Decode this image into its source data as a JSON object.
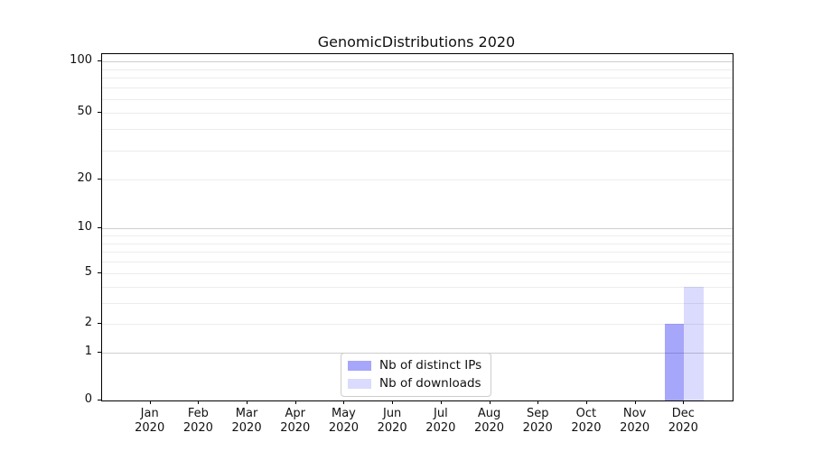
{
  "chart_data": {
    "type": "bar",
    "title": "GenomicDistributions 2020",
    "categories": [
      "Jan",
      "Feb",
      "Mar",
      "Apr",
      "May",
      "Jun",
      "Jul",
      "Aug",
      "Sep",
      "Oct",
      "Nov",
      "Dec"
    ],
    "category_year": "2020",
    "series": [
      {
        "name": "Nb of distinct IPs",
        "color": "rgba(0,0,240,0.35)",
        "values": [
          0,
          0,
          0,
          0,
          0,
          0,
          0,
          0,
          0,
          0,
          0,
          2
        ]
      },
      {
        "name": "Nb of downloads",
        "color": "rgba(0,0,240,0.14)",
        "values": [
          0,
          0,
          0,
          0,
          0,
          0,
          0,
          0,
          0,
          0,
          0,
          4
        ]
      }
    ],
    "yticks": [
      0,
      1,
      2,
      5,
      10,
      20,
      50,
      100
    ],
    "major_gridlines": [
      1,
      10,
      100
    ],
    "minor_gridlines": [
      2,
      3,
      4,
      5,
      6,
      7,
      8,
      9,
      20,
      30,
      40,
      50,
      60,
      70,
      80,
      90
    ],
    "ylim": [
      0,
      110
    ],
    "yscale": "symlog",
    "grid": true,
    "legend_position": "lower center",
    "colors": {
      "major_grid": "#cfcfcf",
      "minor_grid": "#ececec",
      "axis": "#000000",
      "text": "#111111",
      "background": "#ffffff"
    }
  }
}
